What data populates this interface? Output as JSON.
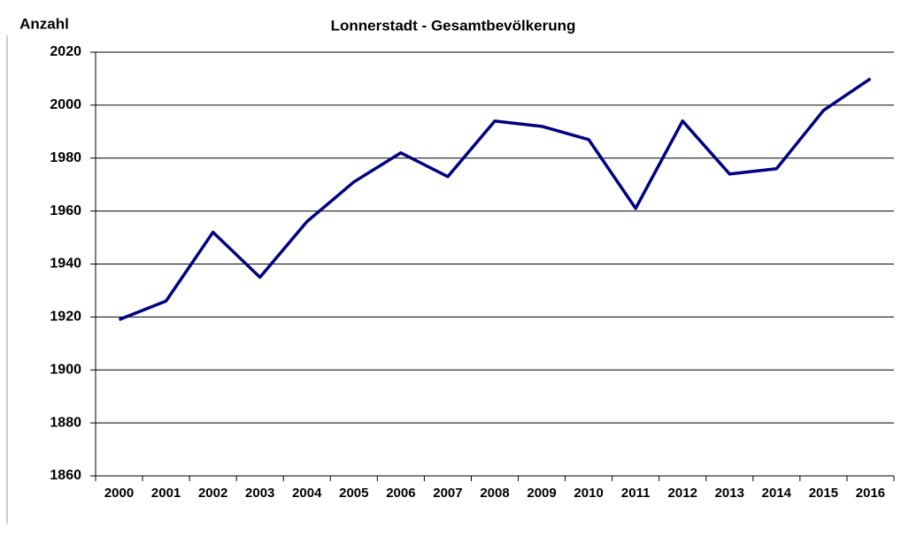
{
  "chart_data": {
    "type": "line",
    "title": "Lonnerstadt -  Gesamtbevölkerung",
    "y_label": "Anzahl",
    "categories": [
      "2000",
      "2001",
      "2002",
      "2003",
      "2004",
      "2005",
      "2006",
      "2007",
      "2008",
      "2009",
      "2010",
      "2011",
      "2012",
      "2013",
      "2014",
      "2015",
      "2016"
    ],
    "series": [
      {
        "name": "Gesamtbevölkerung",
        "color": "#000080",
        "values": [
          1919,
          1926,
          1952,
          1935,
          1956,
          1971,
          1982,
          1973,
          1994,
          1992,
          1987,
          1961,
          1994,
          1974,
          1976,
          1998,
          2010
        ]
      }
    ],
    "ylim": [
      1860,
      2020
    ],
    "yticks": [
      1860,
      1880,
      1900,
      1920,
      1940,
      1960,
      1980,
      2000,
      2020
    ],
    "grid": true
  }
}
